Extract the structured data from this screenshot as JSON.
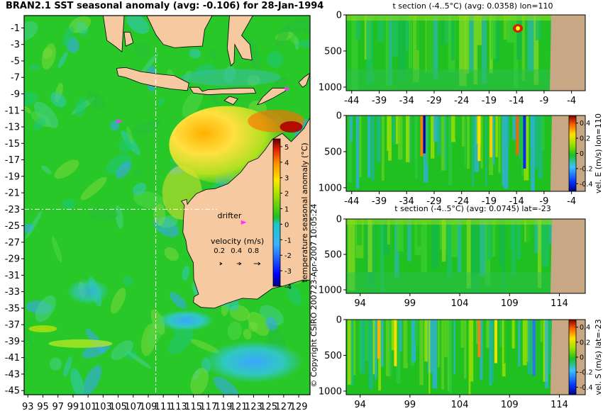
{
  "title": "BRAN2.1 SST seasonal anomaly (avg: -0.106) for 28-Jan-1994",
  "copyright": "© Copyright CSIRO 2007",
  "timestamp": "23-Apr-2007 10:05:24",
  "colors": {
    "land": "#f6c9a0",
    "section_land": "#c8a784",
    "ocean_base": "#29c829",
    "crosshair": "#ffffff",
    "drifter": "#ff33ff"
  },
  "chart_data": [
    {
      "type": "heatmap",
      "name": "sst-map",
      "title": "BRAN2.1 SST seasonal anomaly (avg: -0.106) for 28-Jan-1994",
      "x_ticks": [
        93,
        95,
        97,
        99,
        101,
        103,
        105,
        107,
        109,
        111,
        113,
        115,
        117,
        119,
        121,
        123,
        125,
        127,
        129
      ],
      "y_ticks": [
        -1,
        -3,
        -5,
        -7,
        -9,
        -11,
        -13,
        -15,
        -17,
        -19,
        -21,
        -23,
        -25,
        -27,
        -29,
        -31,
        -33,
        -35,
        -37,
        -39,
        -41,
        -43,
        -45
      ],
      "xlim": [
        92.5,
        130.5
      ],
      "ylim": [
        -45.5,
        0.5
      ],
      "crosshair": {
        "lon": 110,
        "lat": -23
      },
      "colorbar": {
        "label": "temperature seasonal anomaly (°C)",
        "ticks": [
          5,
          4,
          3,
          2,
          1,
          0,
          -1,
          -2,
          -3,
          -4
        ],
        "range": [
          -4,
          5.5
        ]
      },
      "annotations": {
        "drifter_label": "drifter",
        "velocity_title": "velocity (m/s)",
        "velocity_scale": [
          "0.2",
          "0.4",
          "0.8"
        ]
      }
    },
    {
      "type": "heatmap",
      "name": "t-section-lon110",
      "title": "t section (-4..5°C) (avg: 0.0358) lon=110",
      "x_ticks": [
        -44,
        -39,
        -34,
        -29,
        -24,
        -19,
        -14,
        -9,
        -4
      ],
      "y_ticks": [
        0,
        500,
        1000
      ],
      "xlim": [
        -45,
        -1.5
      ],
      "ylim": [
        1050,
        0
      ]
    },
    {
      "type": "heatmap",
      "name": "vel-e-section-lon110",
      "title": "",
      "x_ticks": [
        -44,
        -39,
        -34,
        -29,
        -24,
        -19,
        -14,
        -9,
        -4
      ],
      "y_ticks": [
        0,
        500,
        1000
      ],
      "xlim": [
        -45,
        -1.5
      ],
      "ylim": [
        1050,
        0
      ],
      "colorbar": {
        "label": "vel. E (m/s) lon=110",
        "ticks": [
          "0.4",
          "0.2",
          "0",
          "-0.2",
          "-0.4"
        ],
        "range": [
          -0.5,
          0.5
        ]
      }
    },
    {
      "type": "heatmap",
      "name": "t-section-lat-23",
      "title": "t section (-4..5°C) (avg: 0.0745) lat=-23",
      "x_ticks": [
        94,
        99,
        104,
        109,
        114
      ],
      "y_ticks": [
        0,
        500,
        1000
      ],
      "xlim": [
        92.6,
        116.6
      ],
      "ylim": [
        1050,
        0
      ]
    },
    {
      "type": "heatmap",
      "name": "vel-s-section-lat-23",
      "title": "",
      "x_ticks": [
        94,
        99,
        104,
        109,
        114
      ],
      "y_ticks": [
        0,
        500,
        1000
      ],
      "xlim": [
        92.6,
        116.6
      ],
      "ylim": [
        1050,
        0
      ],
      "colorbar": {
        "label": "vel. S (m/s) lat=-23",
        "ticks": [
          "0.4",
          "0.2",
          "0",
          "-0.2",
          "-0.4"
        ],
        "range": [
          -0.5,
          0.5
        ]
      }
    }
  ]
}
